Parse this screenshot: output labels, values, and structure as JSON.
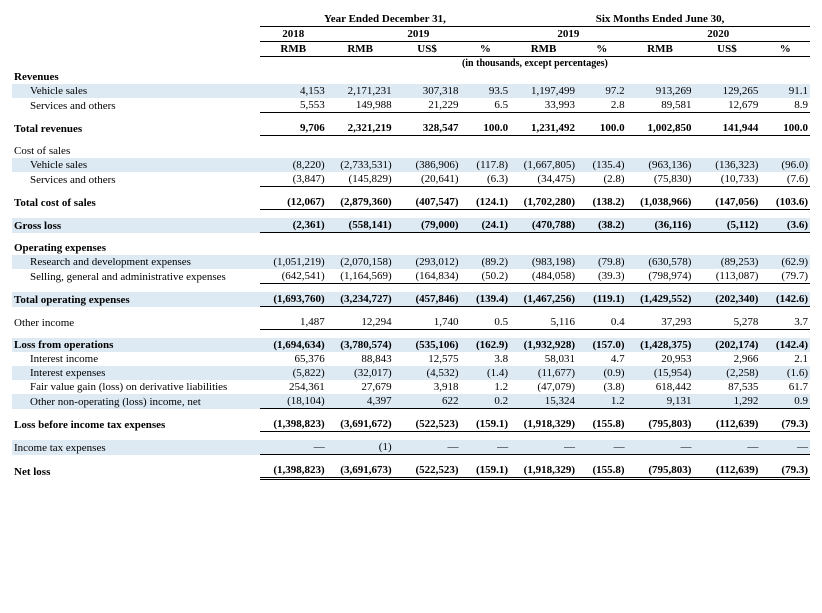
{
  "headers": {
    "period1": "Year Ended December 31,",
    "period2": "Six Months Ended June 30,",
    "y2018": "2018",
    "y2019": "2019",
    "y2020": "2020",
    "rmb": "RMB",
    "uss": "US$",
    "pct": "%",
    "note": "(in thousands, except percentages)"
  },
  "rows": [
    {
      "t": "section",
      "label": "Revenues",
      "bold": true
    },
    {
      "t": "data",
      "alt": true,
      "ind": true,
      "label": "Vehicle sales",
      "c": [
        "4,153",
        "2,171,231",
        "307,318",
        "93.5",
        "1,197,499",
        "97.2",
        "913,269",
        "129,265",
        "91.1"
      ]
    },
    {
      "t": "data",
      "ind": true,
      "ub": true,
      "label": "Services and others",
      "c": [
        "5,553",
        "149,988",
        "21,229",
        "6.5",
        "33,993",
        "2.8",
        "89,581",
        "12,679",
        "8.9"
      ]
    },
    {
      "t": "spacer"
    },
    {
      "t": "data",
      "bold": true,
      "ub": true,
      "label": "Total revenues",
      "c": [
        "9,706",
        "2,321,219",
        "328,547",
        "100.0",
        "1,231,492",
        "100.0",
        "1,002,850",
        "141,944",
        "100.0"
      ]
    },
    {
      "t": "spacer"
    },
    {
      "t": "section",
      "label": "Cost of sales"
    },
    {
      "t": "data",
      "alt": true,
      "ind": true,
      "label": "Vehicle sales",
      "c": [
        "(8,220)",
        "(2,733,531)",
        "(386,906)",
        "(117.8)",
        "(1,667,805)",
        "(135.4)",
        "(963,136)",
        "(136,323)",
        "(96.0)"
      ]
    },
    {
      "t": "data",
      "ind": true,
      "ub": true,
      "label": "Services and others",
      "c": [
        "(3,847)",
        "(145,829)",
        "(20,641)",
        "(6.3)",
        "(34,475)",
        "(2.8)",
        "(75,830)",
        "(10,733)",
        "(7.6)"
      ]
    },
    {
      "t": "spacer"
    },
    {
      "t": "data",
      "bold": true,
      "ub": true,
      "label": "Total cost of sales",
      "c": [
        "(12,067)",
        "(2,879,360)",
        "(407,547)",
        "(124.1)",
        "(1,702,280)",
        "(138.2)",
        "(1,038,966)",
        "(147,056)",
        "(103.6)"
      ]
    },
    {
      "t": "spacer"
    },
    {
      "t": "data",
      "alt": true,
      "bold": true,
      "ub": true,
      "label": "Gross loss",
      "c": [
        "(2,361)",
        "(558,141)",
        "(79,000)",
        "(24.1)",
        "(470,788)",
        "(38.2)",
        "(36,116)",
        "(5,112)",
        "(3.6)"
      ]
    },
    {
      "t": "spacer"
    },
    {
      "t": "section",
      "bold": true,
      "label": "Operating expenses"
    },
    {
      "t": "data",
      "alt": true,
      "ind": true,
      "label": "Research and development expenses",
      "c": [
        "(1,051,219)",
        "(2,070,158)",
        "(293,012)",
        "(89.2)",
        "(983,198)",
        "(79.8)",
        "(630,578)",
        "(89,253)",
        "(62.9)"
      ]
    },
    {
      "t": "data",
      "ind": true,
      "ub": true,
      "label": "Selling, general and administrative expenses",
      "c": [
        "(642,541)",
        "(1,164,569)",
        "(164,834)",
        "(50.2)",
        "(484,058)",
        "(39.3)",
        "(798,974)",
        "(113,087)",
        "(79.7)"
      ]
    },
    {
      "t": "spacer"
    },
    {
      "t": "data",
      "alt": true,
      "bold": true,
      "ub": true,
      "label": "Total operating expenses",
      "c": [
        "(1,693,760)",
        "(3,234,727)",
        "(457,846)",
        "(139.4)",
        "(1,467,256)",
        "(119.1)",
        "(1,429,552)",
        "(202,340)",
        "(142.6)"
      ]
    },
    {
      "t": "spacer"
    },
    {
      "t": "data",
      "ub": true,
      "label": "Other income",
      "c": [
        "1,487",
        "12,294",
        "1,740",
        "0.5",
        "5,116",
        "0.4",
        "37,293",
        "5,278",
        "3.7"
      ]
    },
    {
      "t": "spacer"
    },
    {
      "t": "data",
      "alt": true,
      "bold": true,
      "label": "Loss from operations",
      "c": [
        "(1,694,634)",
        "(3,780,574)",
        "(535,106)",
        "(162.9)",
        "(1,932,928)",
        "(157.0)",
        "(1,428,375)",
        "(202,174)",
        "(142.4)"
      ]
    },
    {
      "t": "data",
      "ind": true,
      "label": "Interest income",
      "c": [
        "65,376",
        "88,843",
        "12,575",
        "3.8",
        "58,031",
        "4.7",
        "20,953",
        "2,966",
        "2.1"
      ]
    },
    {
      "t": "data",
      "alt": true,
      "ind": true,
      "label": "Interest expenses",
      "c": [
        "(5,822)",
        "(32,017)",
        "(4,532)",
        "(1.4)",
        "(11,677)",
        "(0.9)",
        "(15,954)",
        "(2,258)",
        "(1.6)"
      ]
    },
    {
      "t": "data",
      "ind": true,
      "label": "Fair value gain (loss) on derivative liabilities",
      "c": [
        "254,361",
        "27,679",
        "3,918",
        "1.2",
        "(47,079)",
        "(3.8)",
        "618,442",
        "87,535",
        "61.7"
      ]
    },
    {
      "t": "data",
      "alt": true,
      "ind": true,
      "ub": true,
      "label": "Other non-operating (loss) income, net",
      "c": [
        "(18,104)",
        "4,397",
        "622",
        "0.2",
        "15,324",
        "1.2",
        "9,131",
        "1,292",
        "0.9"
      ]
    },
    {
      "t": "spacer"
    },
    {
      "t": "data",
      "bold": true,
      "ub": true,
      "label": "Loss before income tax expenses",
      "c": [
        "(1,398,823)",
        "(3,691,672)",
        "(522,523)",
        "(159.1)",
        "(1,918,329)",
        "(155.8)",
        "(795,803)",
        "(112,639)",
        "(79.3)"
      ]
    },
    {
      "t": "spacer"
    },
    {
      "t": "data",
      "alt": true,
      "ub": true,
      "label": "Income tax expenses",
      "c": [
        "—",
        "(1)",
        "—",
        "—",
        "—",
        "—",
        "—",
        "—",
        "—"
      ]
    },
    {
      "t": "spacer"
    },
    {
      "t": "data",
      "bold": true,
      "dbl": true,
      "label": "Net loss",
      "c": [
        "(1,398,823)",
        "(3,691,673)",
        "(522,523)",
        "(159.1)",
        "(1,918,329)",
        "(155.8)",
        "(795,803)",
        "(112,639)",
        "(79.3)"
      ]
    }
  ]
}
